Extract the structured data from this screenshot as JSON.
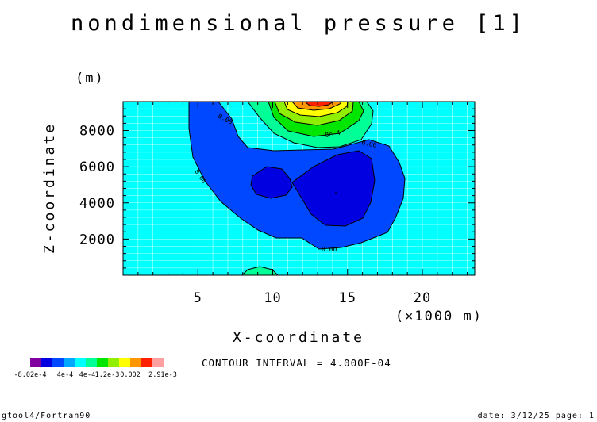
{
  "chart_data": {
    "type": "contour",
    "title": "nondimensional pressure [1]",
    "xlabel": "X-coordinate",
    "xunit": "(×1000 m)",
    "ylabel": "Z-coordinate",
    "yunit": "(m)",
    "xlim": [
      0,
      23.5
    ],
    "ylim": [
      0,
      9600
    ],
    "x_ticks": [
      5,
      10,
      15,
      20
    ],
    "x_tick_labels": [
      "5",
      "10",
      "15",
      "20"
    ],
    "y_ticks": [
      2000,
      4000,
      6000,
      8000
    ],
    "y_tick_labels": [
      "2000",
      "4000",
      "6000",
      "8000"
    ],
    "grid": true,
    "contour_interval_text": "CONTOUR INTERVAL = 4.000E-04",
    "contour_labels": [
      "0.00",
      "0.00",
      "0.00",
      "0.00",
      "8e-4"
    ],
    "colorbar": {
      "colors": [
        "#8000a0",
        "#0000e0",
        "#0048ff",
        "#00a8ff",
        "#00ffff",
        "#00ff96",
        "#00e600",
        "#90ee00",
        "#ffff00",
        "#ff9600",
        "#ff2000",
        "#ffa0a0"
      ],
      "tick_labels": [
        "-8.02e-4",
        "4e-4",
        "4e-4",
        "1.2e-3",
        "0.002",
        "2.91e-3"
      ]
    },
    "min": -0.000802,
    "max": 0.00291
  },
  "footer": {
    "left": "gtool4/Fortran90",
    "right": "date: 3/12/25 page: 1"
  }
}
